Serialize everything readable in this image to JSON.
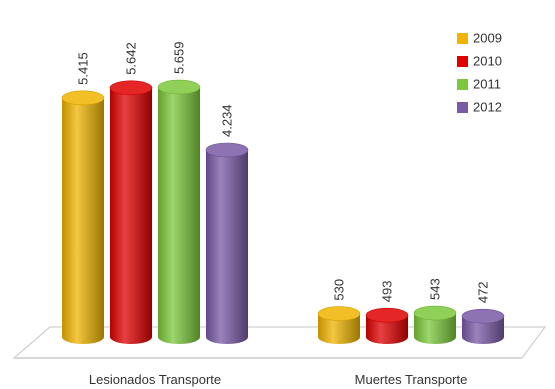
{
  "chart_data": {
    "type": "bar",
    "style": "3d-cylinder",
    "categories": [
      "Lesionados Transporte",
      "Muertes Transporte"
    ],
    "series": [
      {
        "name": "2009",
        "values": [
          5415,
          530
        ],
        "labels": [
          "5.415",
          "530"
        ]
      },
      {
        "name": "2010",
        "values": [
          5642,
          493
        ],
        "labels": [
          "5.642",
          "493"
        ]
      },
      {
        "name": "2011",
        "values": [
          5659,
          543
        ],
        "labels": [
          "5.659",
          "543"
        ]
      },
      {
        "name": "2012",
        "values": [
          4234,
          472
        ],
        "labels": [
          "4.234",
          "472"
        ]
      }
    ],
    "ylim": [
      0,
      6000
    ],
    "grid": false,
    "legend_position": "top-right"
  },
  "colors": {
    "2009": "#f0b400",
    "2010": "#e00000",
    "2011": "#7cc83a",
    "2012": "#7a5aa6"
  }
}
